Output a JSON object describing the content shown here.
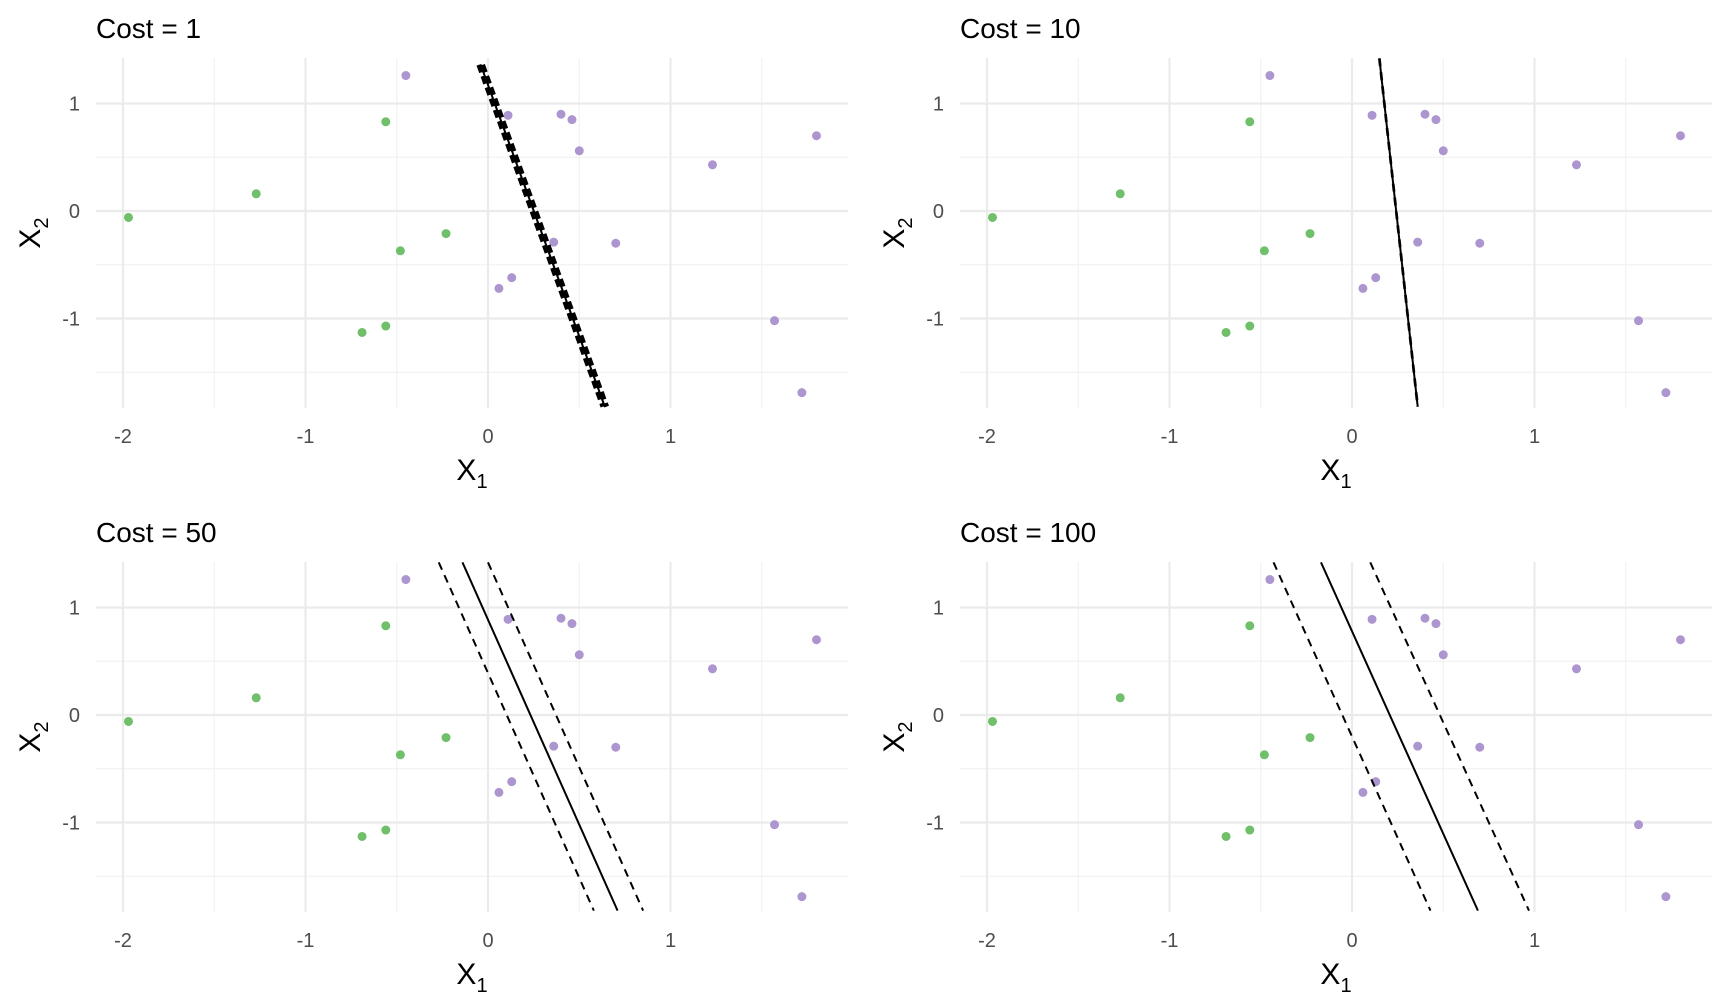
{
  "chart_data": [
    {
      "type": "scatter",
      "title": "Cost = 1",
      "xlabel": {
        "main": "X",
        "sub": "1"
      },
      "ylabel": {
        "main": "X",
        "sub": "2"
      },
      "xlim": [
        -2.2,
        1.95
      ],
      "ylim": [
        -1.82,
        1.42
      ],
      "xticks": [
        -2,
        -1,
        0,
        1
      ],
      "yticks": [
        -1,
        0,
        1
      ],
      "grid": true,
      "boundary": {
        "p1": [
          -0.04,
          1.36
        ],
        "p2": [
          0.64,
          -1.82
        ]
      },
      "margins": [
        {
          "p1": [
            -0.05,
            1.36
          ],
          "p2": [
            0.63,
            -1.82
          ]
        },
        {
          "p1": [
            -0.03,
            1.36
          ],
          "p2": [
            0.65,
            -1.82
          ]
        }
      ]
    },
    {
      "type": "scatter",
      "title": "Cost = 10",
      "xlabel": {
        "main": "X",
        "sub": "1"
      },
      "ylabel": {
        "main": "X",
        "sub": "2"
      },
      "xlim": [
        -2.2,
        1.95
      ],
      "ylim": [
        -1.82,
        1.42
      ],
      "xticks": [
        -2,
        -1,
        0,
        1
      ],
      "yticks": [
        -1,
        0,
        1
      ],
      "grid": true,
      "boundary": {
        "p1": [
          0.15,
          1.42
        ],
        "p2": [
          0.36,
          -1.82
        ]
      },
      "margins": [
        {
          "p1": [
            0.148,
            1.42
          ],
          "p2": [
            0.358,
            -1.82
          ]
        },
        {
          "p1": [
            0.152,
            1.42
          ],
          "p2": [
            0.362,
            -1.82
          ]
        }
      ]
    },
    {
      "type": "scatter",
      "title": "Cost = 50",
      "xlabel": {
        "main": "X",
        "sub": "1"
      },
      "ylabel": {
        "main": "X",
        "sub": "2"
      },
      "xlim": [
        -2.2,
        1.95
      ],
      "ylim": [
        -1.82,
        1.42
      ],
      "xticks": [
        -2,
        -1,
        0,
        1
      ],
      "yticks": [
        -1,
        0,
        1
      ],
      "grid": true,
      "boundary": {
        "p1": [
          -0.14,
          1.42
        ],
        "p2": [
          0.71,
          -1.82
        ]
      },
      "margins": [
        {
          "p1": [
            -0.27,
            1.42
          ],
          "p2": [
            0.58,
            -1.82
          ]
        },
        {
          "p1": [
            0.0,
            1.42
          ],
          "p2": [
            0.85,
            -1.82
          ]
        }
      ]
    },
    {
      "type": "scatter",
      "title": "Cost = 100",
      "xlabel": {
        "main": "X",
        "sub": "1"
      },
      "ylabel": {
        "main": "X",
        "sub": "2"
      },
      "xlim": [
        -2.2,
        1.95
      ],
      "ylim": [
        -1.82,
        1.42
      ],
      "xticks": [
        -2,
        -1,
        0,
        1
      ],
      "yticks": [
        -1,
        0,
        1
      ],
      "grid": true,
      "boundary": {
        "p1": [
          -0.17,
          1.42
        ],
        "p2": [
          0.69,
          -1.82
        ]
      },
      "margins": [
        {
          "p1": [
            -0.43,
            1.42
          ],
          "p2": [
            0.43,
            -1.82
          ]
        },
        {
          "p1": [
            0.1,
            1.42
          ],
          "p2": [
            0.97,
            -1.82
          ]
        }
      ]
    }
  ],
  "points": {
    "green": [
      [
        -1.97,
        -0.06
      ],
      [
        -1.27,
        0.16
      ],
      [
        -0.56,
        0.83
      ],
      [
        -0.48,
        -0.37
      ],
      [
        -0.23,
        -0.21
      ],
      [
        -0.69,
        -1.13
      ],
      [
        -0.56,
        -1.07
      ]
    ],
    "purple": [
      [
        -0.45,
        1.26
      ],
      [
        0.11,
        0.89
      ],
      [
        0.4,
        0.9
      ],
      [
        0.46,
        0.85
      ],
      [
        0.5,
        0.56
      ],
      [
        1.23,
        0.43
      ],
      [
        1.8,
        0.7
      ],
      [
        0.36,
        -0.29
      ],
      [
        0.7,
        -0.3
      ],
      [
        0.06,
        -0.72
      ],
      [
        0.13,
        -0.62
      ],
      [
        1.57,
        -1.02
      ],
      [
        1.72,
        -1.69
      ]
    ]
  },
  "colors": {
    "green": "#70bf6a",
    "purple": "#ad96d0",
    "line": "#000000"
  }
}
